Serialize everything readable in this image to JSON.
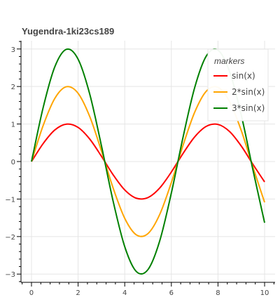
{
  "chart_data": {
    "type": "line",
    "title": "Yugendra-1ki23cs189",
    "xlabel": "",
    "ylabel": "",
    "xlim": [
      -0.45,
      10.45
    ],
    "ylim": [
      -3.22,
      3.22
    ],
    "x_ticks": [
      0,
      2,
      4,
      6,
      8,
      10
    ],
    "x_tick_labels": [
      "0",
      "2",
      "4",
      "6",
      "8",
      "10"
    ],
    "y_ticks": [
      -3,
      -2,
      -1,
      0,
      1,
      2,
      3
    ],
    "y_tick_labels": [
      "−3",
      "−2",
      "−1",
      "0",
      "1",
      "2",
      "3"
    ],
    "grid": true,
    "x": [
      0,
      0.5,
      1,
      1.5,
      2,
      2.5,
      3,
      3.5,
      4,
      4.5,
      5,
      5.5,
      6,
      6.5,
      7,
      7.5,
      8,
      8.5,
      9,
      9.5,
      10
    ],
    "series": [
      {
        "name": "sin(x)",
        "color": "#ff0000",
        "values": [
          0,
          0.479,
          0.841,
          0.997,
          0.909,
          0.598,
          0.141,
          -0.351,
          -0.757,
          -0.978,
          -0.959,
          -0.706,
          -0.279,
          0.215,
          0.657,
          0.938,
          0.989,
          0.798,
          0.412,
          -0.075,
          -0.544
        ]
      },
      {
        "name": "2*sin(x)",
        "color": "#ffa500",
        "values": [
          0,
          0.959,
          1.683,
          1.995,
          1.819,
          1.197,
          0.282,
          -0.702,
          -1.514,
          -1.955,
          -1.918,
          -1.411,
          -0.559,
          0.43,
          1.314,
          1.876,
          1.979,
          1.596,
          0.824,
          -0.15,
          -1.088
        ]
      },
      {
        "name": "3*sin(x)",
        "color": "#008000",
        "values": [
          0,
          1.438,
          2.524,
          2.992,
          2.728,
          1.795,
          0.423,
          -1.052,
          -2.27,
          -2.933,
          -2.877,
          -2.117,
          -0.838,
          0.645,
          1.971,
          2.814,
          2.968,
          2.394,
          1.236,
          -0.225,
          -1.632
        ]
      }
    ],
    "legend": {
      "title": "markers",
      "placement": "top-right",
      "items": [
        "sin(x)",
        "2*sin(x)",
        "3*sin(x)"
      ]
    }
  }
}
